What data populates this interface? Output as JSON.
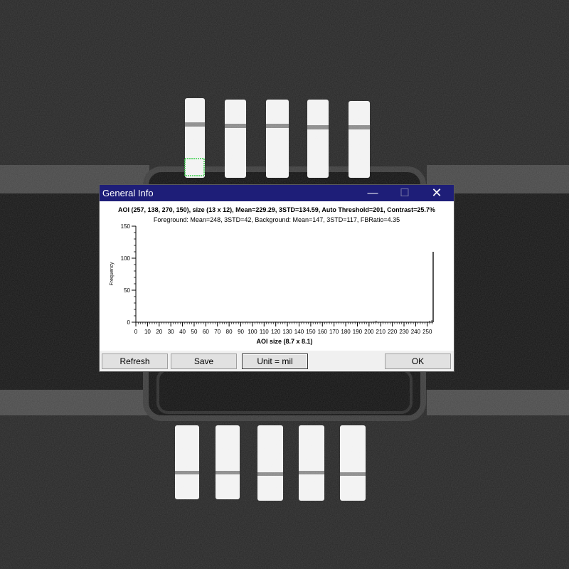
{
  "window": {
    "title": "General Info",
    "controls": {
      "minimize": "—",
      "maximize": "☐",
      "close": "✕"
    }
  },
  "info": {
    "line1": "AOI (257, 138, 270, 150), size (13 x 12), Mean=229.29, 3STD=134.59, Auto Threshold=201, Contrast=25.7%",
    "line2": "Foreground: Mean=248, 3STD=42, Background: Mean=147, 3STD=117, FBRatio=4.35"
  },
  "chart_data": {
    "type": "bar",
    "xlabel": "AOI size (8.7 x 8.1)",
    "ylabel": "Frequency",
    "xlim": [
      0,
      255
    ],
    "ylim": [
      0,
      150
    ],
    "x_ticks": [
      0,
      10,
      20,
      30,
      40,
      50,
      60,
      70,
      80,
      90,
      100,
      110,
      120,
      130,
      140,
      150,
      160,
      170,
      180,
      190,
      200,
      210,
      220,
      230,
      240,
      250
    ],
    "y_ticks": [
      0,
      50,
      100,
      150
    ],
    "x": [
      72,
      80,
      88,
      95,
      104,
      112,
      120,
      128,
      136,
      143,
      150,
      158,
      166,
      174,
      182,
      188,
      196,
      204,
      206,
      212,
      220,
      228,
      236,
      240,
      244,
      250,
      252,
      254,
      255
    ],
    "values": [
      1,
      1,
      1,
      1,
      1,
      1,
      1,
      1,
      1,
      1,
      1,
      1,
      1,
      1,
      1,
      1,
      1,
      1,
      2,
      1,
      1,
      1,
      1,
      1,
      1,
      1,
      2,
      3,
      110
    ],
    "grid": false,
    "legend": "none"
  },
  "buttons": {
    "refresh": "Refresh",
    "save": "Save",
    "unit": "Unit = mil",
    "ok": "OK"
  },
  "colors": {
    "titlebar": "#1e1e78",
    "bar": "#555555",
    "aoi_marker": "#2ecc40"
  }
}
